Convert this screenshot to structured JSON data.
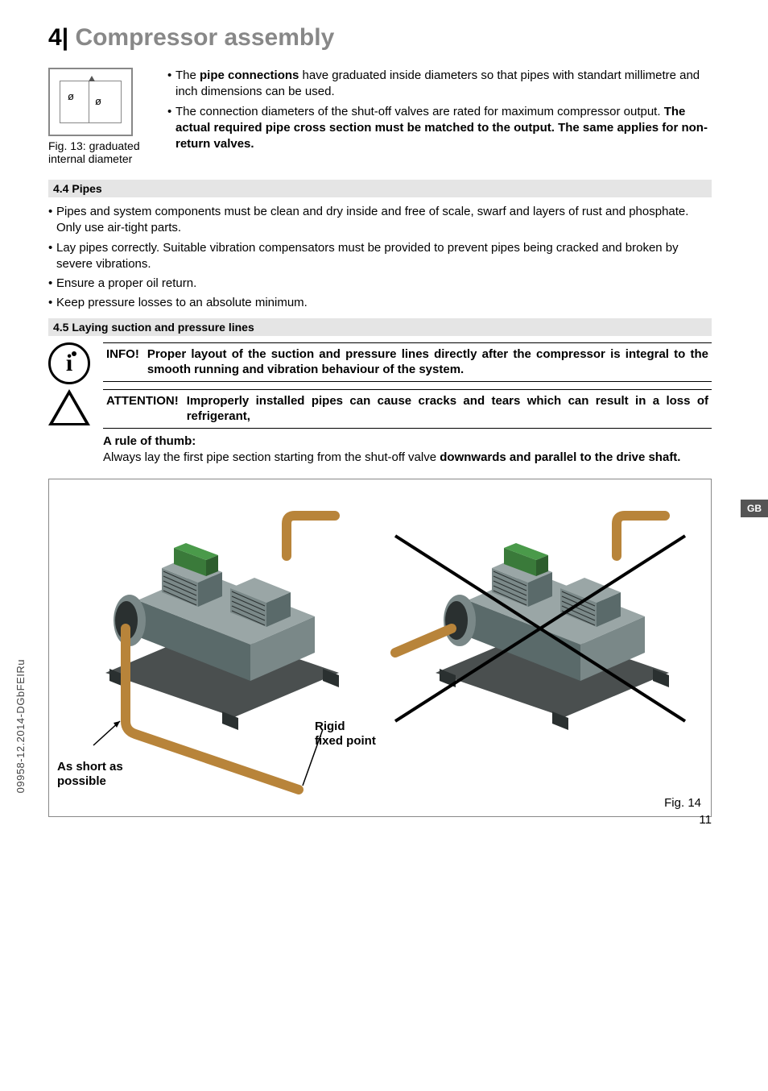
{
  "heading": {
    "num": "4",
    "sep": "|",
    "text": "Compressor assembly"
  },
  "fig13": {
    "caption": "Fig. 13: graduated internal diameter",
    "sym_left": "ø",
    "sym_right": "ø",
    "bullets": [
      {
        "pre": "The ",
        "bold1": "pipe connections",
        "post1": " have graduated inside diameters so that pipes with standart millimetre and inch dimensions can be used."
      },
      {
        "pre": "The connection diameters of the shut-off valves are rated for maximum compressor output. ",
        "bold1": "The actual required pipe cross section must be matched to the output. The same applies for non-return valves.",
        "post1": ""
      }
    ]
  },
  "sec44": {
    "bar": "4.4   Pipes",
    "items": [
      "Pipes and system components must be clean and dry inside and free of scale, swarf and layers of rust and phosphate. Only use air-tight parts.",
      "Lay pipes correctly. Suitable vibration compensators must be provided to prevent pipes being cracked and broken by severe vibrations.",
      "Ensure a proper oil return.",
      "Keep pressure losses to an absolute minimum."
    ]
  },
  "sec45": {
    "bar": "4.5   Laying suction and pressure lines",
    "info_label": "INFO!",
    "info_text": "Proper layout of the suction and pressure lines directly after the compressor is integral to the smooth running and vibration behaviour of the system.",
    "warn_label": "ATTENTION!",
    "warn_text": "Improperly installed pipes can cause cracks and tears which can result in a loss of refrigerant,",
    "rule_title": "A rule of thumb:",
    "rule_pre": "Always lay the first pipe section starting from the shut-off valve ",
    "rule_bold": "downwards and parallel to the drive shaft."
  },
  "fig14": {
    "label_rigid": "Rigid",
    "label_fixed": "fixed point",
    "label_short1": "As short as",
    "label_short2": "possible",
    "caption": "Fig. 14",
    "colors": {
      "base": "#5a6a6a",
      "mid": "#7a8888",
      "light": "#9aa6a6",
      "green": "#3a7a3a",
      "pipe": "#b8843a",
      "dark": "#2a3030",
      "cross": "#000000"
    }
  },
  "tab": "GB",
  "side_code": "09958-12.2014-DGbFEIRu",
  "page_num": "11"
}
